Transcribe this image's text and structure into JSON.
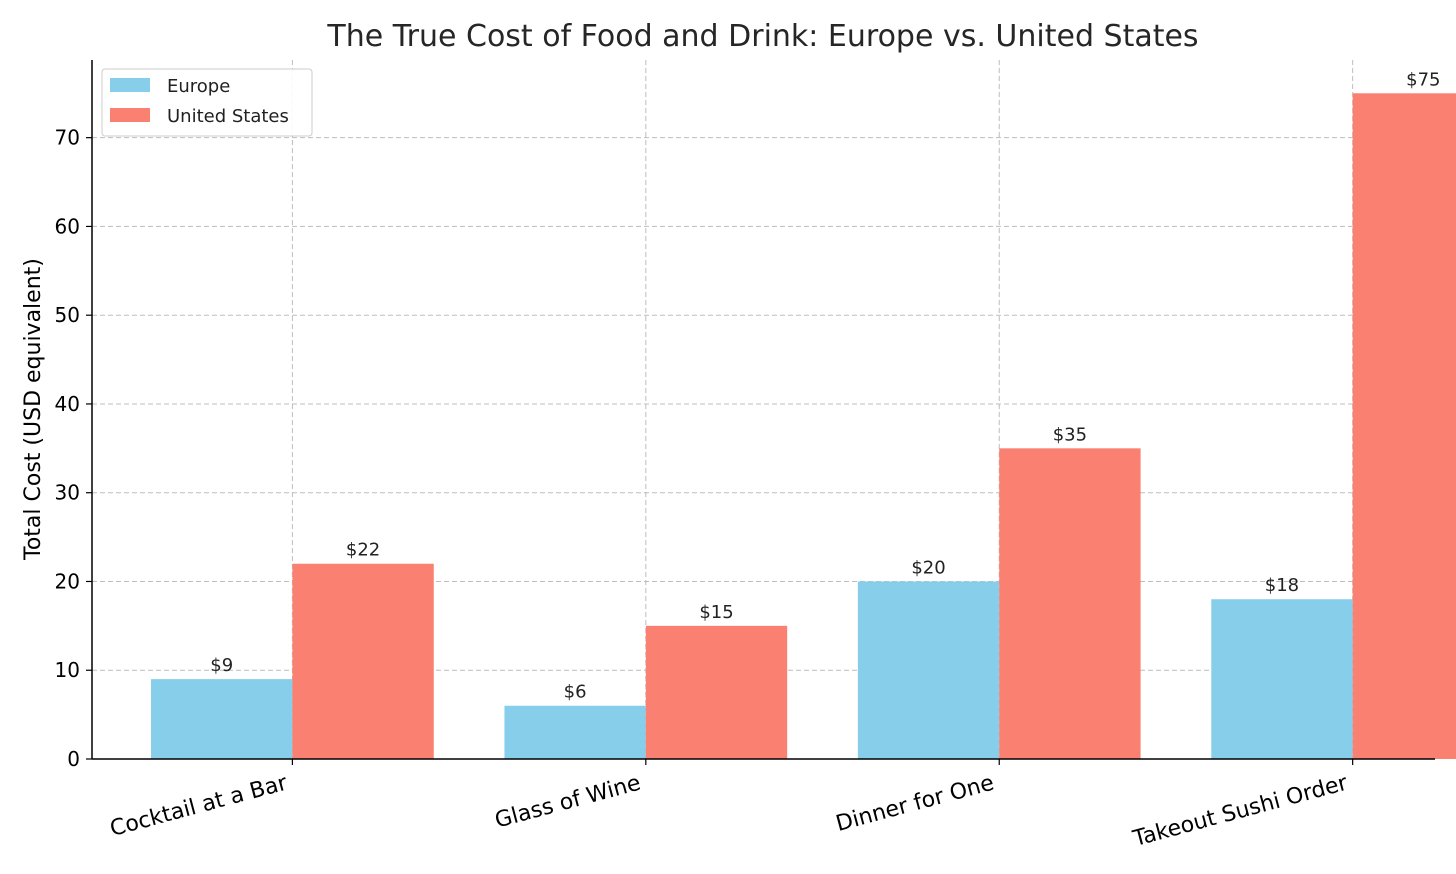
{
  "chart_data": {
    "type": "bar",
    "title": "The True Cost of Food and Drink: Europe vs. United States",
    "xlabel": "",
    "ylabel": "Total Cost (USD equivalent)",
    "categories": [
      "Cocktail at a Bar",
      "Glass of Wine",
      "Dinner for One",
      "Takeout Sushi Order"
    ],
    "series": [
      {
        "name": "Europe",
        "color": "#87ceeb",
        "values": [
          9,
          6,
          20,
          18
        ],
        "labels": [
          "$9",
          "$6",
          "$20",
          "$18"
        ]
      },
      {
        "name": "United States",
        "color": "#fa8072",
        "values": [
          22,
          15,
          35,
          75
        ],
        "labels": [
          "$22",
          "$15",
          "$35",
          "$75"
        ]
      }
    ],
    "ylim": [
      0,
      78.75
    ],
    "yticks": [
      0,
      10,
      20,
      30,
      40,
      50,
      60,
      70
    ],
    "ytick_labels": [
      "0",
      "10",
      "20",
      "30",
      "40",
      "50",
      "60",
      "70"
    ],
    "grid": true,
    "legend_position": "top-left"
  }
}
